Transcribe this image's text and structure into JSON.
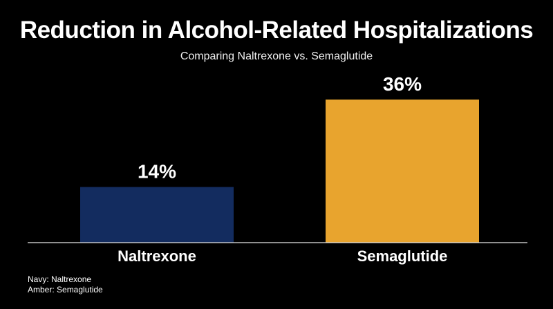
{
  "chart_data": {
    "type": "bar",
    "title": "Reduction in Alcohol-Related Hospitalizations",
    "subtitle": "Comparing Naltrexone vs. Semaglutide",
    "categories": [
      "Naltrexone",
      "Semaglutide"
    ],
    "values": [
      14,
      36
    ],
    "value_labels": [
      "14%",
      "36%"
    ],
    "colors": [
      "#132c5f",
      "#e8a42e"
    ],
    "ylim": [
      0,
      40
    ],
    "xlabel": "",
    "ylabel": "",
    "grid": false,
    "legend": {
      "placement": "bottom-left",
      "entries": [
        "Navy: Naltrexone",
        "Amber: Semaglutide"
      ]
    }
  },
  "colors": {
    "background": "#000000",
    "text": "#ffffff",
    "axis": "#e6e6e6"
  }
}
